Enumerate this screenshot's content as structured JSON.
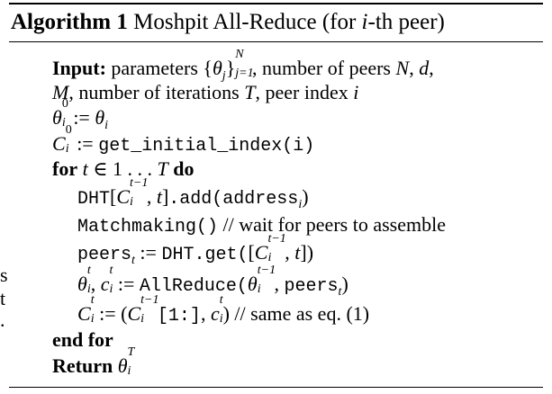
{
  "header": {
    "label": "Algorithm 1",
    "title": "Moshpit All-Reduce (for",
    "title_var": "i",
    "title_suffix": "-th peer)"
  },
  "left_clip": [
    "s",
    "t",
    "."
  ],
  "algorithm": {
    "input_keyword": "Input:",
    "input_text_1": "parameters",
    "input_text_2": ", number of peers",
    "input_text_3": ",",
    "input_line2": "number of iterations",
    "input_line2_b": ", peer index",
    "get_initial_index": "get_initial_index(i)",
    "for_keyword": "for",
    "range_text": "1 . . .",
    "do_keyword": "do",
    "dht": "DHT",
    "add_call": ".add(",
    "address": "address",
    "matchmaking": "Matchmaking()",
    "matchmaking_comment": "// wait for peers to assemble",
    "peers": "peers",
    "dht_get": "DHT.get(",
    "allreduce": "AllReduce(",
    "peers_arg": "peers",
    "slice": "[1:]",
    "same_as_comment": "// same as eq. (1)",
    "end_for": "end for",
    "return_keyword": "Return"
  }
}
